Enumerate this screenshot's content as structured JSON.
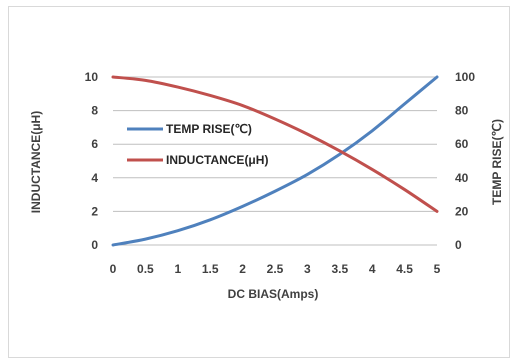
{
  "chart_data": {
    "type": "line",
    "xlabel": "DC  BIAS(Amps)",
    "ylabel_left": "INDUCTANCE(μH)",
    "ylabel_right": "TEMP RISE(℃)",
    "x_ticks": [
      "0",
      "0.5",
      "1",
      "1.5",
      "2",
      "2.5",
      "3",
      "3.5",
      "4",
      "4.5",
      "5"
    ],
    "y_left_ticks": [
      "0",
      "2",
      "4",
      "6",
      "8",
      "10"
    ],
    "y_right_ticks": [
      "0",
      "20",
      "40",
      "60",
      "80",
      "100"
    ],
    "xlim": [
      0,
      5
    ],
    "ylim_left": [
      0,
      10
    ],
    "ylim_right": [
      0,
      100
    ],
    "grid": "horizontal",
    "legend_position": "upper-left",
    "series": [
      {
        "name": "TEMP RISE(℃)",
        "axis": "right",
        "color": "#4f81bd",
        "x": [
          0,
          0.5,
          1,
          1.5,
          2,
          2.5,
          3,
          3.5,
          4,
          4.5,
          5
        ],
        "y": [
          0,
          3.5,
          8.5,
          15,
          23,
          32,
          42,
          54,
          68,
          84,
          100
        ]
      },
      {
        "name": "INDUCTANCE(μH)",
        "axis": "left",
        "color": "#c0504d",
        "x": [
          0,
          0.5,
          1,
          1.5,
          2,
          2.5,
          3,
          3.5,
          4,
          4.5,
          5
        ],
        "y": [
          10,
          9.8,
          9.4,
          8.9,
          8.3,
          7.5,
          6.6,
          5.6,
          4.5,
          3.3,
          2.0
        ]
      }
    ]
  }
}
